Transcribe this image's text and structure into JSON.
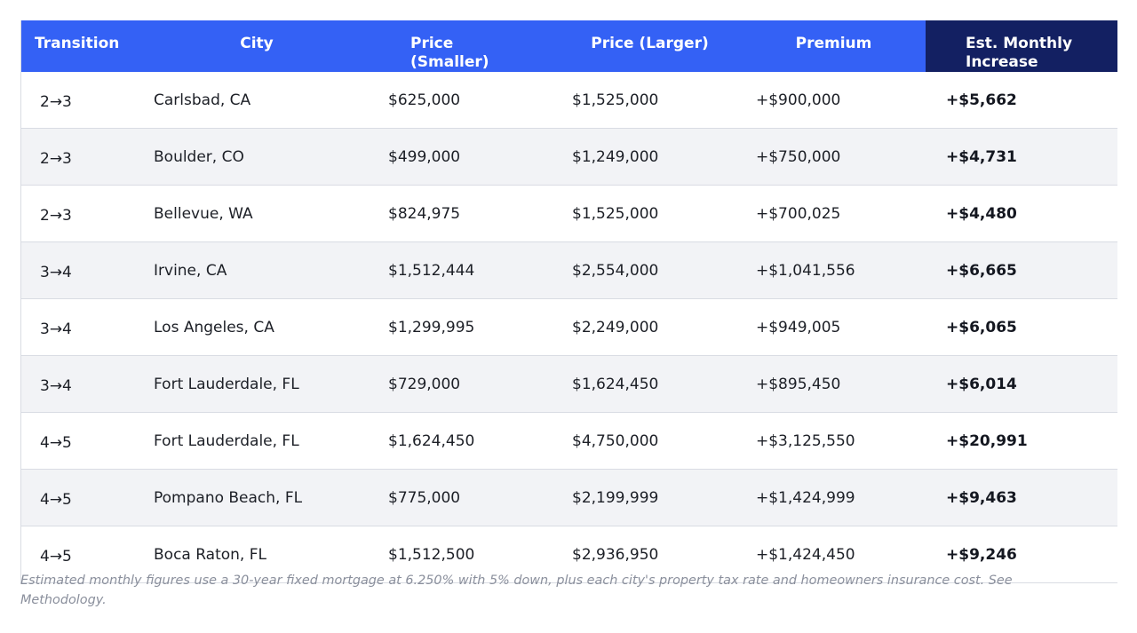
{
  "colors": {
    "header_bg": "#3461f5",
    "header_accent_bg": "#132062",
    "header_text": "#ffffff",
    "row_alt_bg": "#f2f3f6",
    "border": "#d9dce3",
    "footnote_text": "#8a8f9c"
  },
  "table": {
    "headers": {
      "transition": "Transition",
      "city": "City",
      "price_smaller_line1": "Price",
      "price_smaller_line2": "(Smaller)",
      "price_larger": "Price (Larger)",
      "premium": "Premium",
      "monthly_line1": "Est. Monthly",
      "monthly_line2": "Increase"
    },
    "rows": [
      {
        "transition": "2→3",
        "city": "Carlsbad, CA",
        "price_smaller": "$625,000",
        "price_larger": "$1,525,000",
        "premium": "+$900,000",
        "monthly": "+$5,662"
      },
      {
        "transition": "2→3",
        "city": "Boulder, CO",
        "price_smaller": "$499,000",
        "price_larger": "$1,249,000",
        "premium": "+$750,000",
        "monthly": "+$4,731"
      },
      {
        "transition": "2→3",
        "city": "Bellevue, WA",
        "price_smaller": "$824,975",
        "price_larger": "$1,525,000",
        "premium": "+$700,025",
        "monthly": "+$4,480"
      },
      {
        "transition": "3→4",
        "city": "Irvine, CA",
        "price_smaller": "$1,512,444",
        "price_larger": "$2,554,000",
        "premium": "+$1,041,556",
        "monthly": "+$6,665"
      },
      {
        "transition": "3→4",
        "city": "Los Angeles, CA",
        "price_smaller": "$1,299,995",
        "price_larger": "$2,249,000",
        "premium": "+$949,005",
        "monthly": "+$6,065"
      },
      {
        "transition": "3→4",
        "city": "Fort Lauderdale, FL",
        "price_smaller": "$729,000",
        "price_larger": "$1,624,450",
        "premium": "+$895,450",
        "monthly": "+$6,014"
      },
      {
        "transition": "4→5",
        "city": "Fort Lauderdale, FL",
        "price_smaller": "$1,624,450",
        "price_larger": "$4,750,000",
        "premium": "+$3,125,550",
        "monthly": "+$20,991"
      },
      {
        "transition": "4→5",
        "city": "Pompano Beach, FL",
        "price_smaller": "$775,000",
        "price_larger": "$2,199,999",
        "premium": "+$1,424,999",
        "monthly": "+$9,463"
      },
      {
        "transition": "4→5",
        "city": "Boca Raton, FL",
        "price_smaller": "$1,512,500",
        "price_larger": "$2,936,950",
        "premium": "+$1,424,450",
        "monthly": "+$9,246"
      }
    ]
  },
  "footnote": "Estimated monthly figures use a 30-year fixed mortgage at 6.250% with 5% down, plus each city's property tax rate and homeowners insurance cost. See Methodology."
}
